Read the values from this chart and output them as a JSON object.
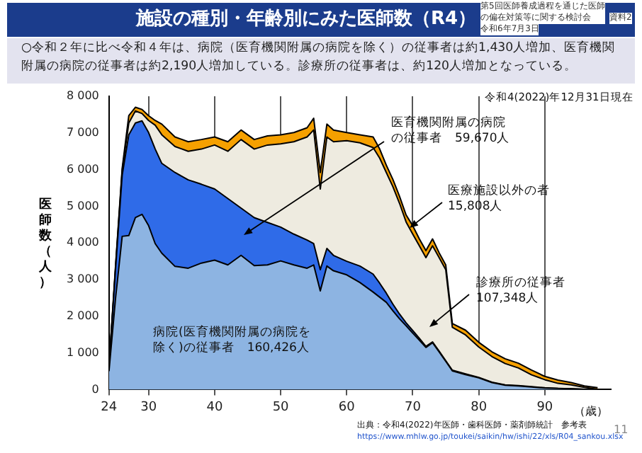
{
  "chart_data": {
    "type": "area",
    "stacked": true,
    "title": "施設の種別・年齢別にみた医師数（R4）",
    "subtitle": "○令和２年に比べ令和４年は、病院（医育機関附属の病院を除く）の従事者は約1,430人増加、医育機関附属の病院の従事者は約2,190人増加している。診療所の従事者は、約120人増加となっている。",
    "ylabel": "医師数（人）",
    "xlabel": "（歳）",
    "x": [
      24,
      25,
      26,
      27,
      28,
      29,
      30,
      31,
      32,
      34,
      36,
      38,
      40,
      42,
      44,
      46,
      48,
      50,
      52,
      54,
      55,
      56,
      57,
      58,
      60,
      62,
      64,
      65,
      66,
      67,
      68,
      69,
      70,
      71,
      72,
      73,
      74,
      75,
      76,
      78,
      80,
      82,
      84,
      86,
      88,
      90,
      92,
      94,
      96,
      98
    ],
    "series": [
      {
        "color": "#8db4e2",
        "values": [
          500,
          2500,
          4180,
          4200,
          4690,
          4780,
          4470,
          3980,
          3720,
          3360,
          3310,
          3450,
          3530,
          3400,
          3660,
          3380,
          3400,
          3510,
          3400,
          3310,
          3400,
          2690,
          3370,
          3240,
          3130,
          2920,
          2660,
          2520,
          2380,
          2150,
          1930,
          1740,
          1540,
          1350,
          1150,
          1280,
          1030,
          770,
          510,
          410,
          320,
          190,
          120,
          100,
          70,
          40,
          30,
          20,
          10,
          0
        ]
      },
      {
        "color": "#2f6be8",
        "values": [
          100,
          800,
          1670,
          2750,
          2580,
          2550,
          2540,
          2580,
          2450,
          2560,
          2410,
          2150,
          1940,
          1810,
          1290,
          1310,
          1160,
          920,
          840,
          770,
          580,
          580,
          480,
          420,
          370,
          450,
          490,
          380,
          250,
          180,
          130,
          80,
          70,
          50,
          30,
          20,
          20,
          20,
          20,
          20,
          10,
          10,
          10,
          10,
          10,
          10,
          0,
          0,
          0,
          0
        ]
      },
      {
        "color": "#eeebe0",
        "values": [
          20,
          50,
          130,
          320,
          330,
          200,
          330,
          650,
          780,
          710,
          780,
          960,
          1200,
          1290,
          1870,
          1870,
          2110,
          2270,
          2520,
          2810,
          3100,
          2200,
          3040,
          3100,
          3290,
          3360,
          3450,
          3410,
          3290,
          3200,
          3020,
          2750,
          2630,
          2520,
          2420,
          2620,
          2550,
          2480,
          1170,
          1060,
          830,
          700,
          580,
          480,
          320,
          220,
          140,
          110,
          50,
          10
        ]
      },
      {
        "color": "#f5a000",
        "values": [
          10,
          50,
          60,
          200,
          100,
          110,
          130,
          130,
          290,
          260,
          260,
          260,
          220,
          260,
          260,
          260,
          250,
          250,
          250,
          250,
          320,
          450,
          350,
          320,
          220,
          220,
          290,
          250,
          200,
          200,
          190,
          190,
          230,
          190,
          190,
          190,
          130,
          130,
          100,
          130,
          130,
          130,
          130,
          130,
          130,
          90,
          90,
          60,
          40,
          40
        ]
      }
    ],
    "xlim": [
      24,
      100
    ],
    "xticks": [
      24,
      30,
      40,
      50,
      60,
      70,
      80,
      90
    ],
    "ylim": [
      0,
      8000
    ],
    "yticks": [
      0,
      {
        "value": 1000,
        "label": "1 000"
      },
      {
        "value": 2000,
        "label": "2 000"
      },
      {
        "value": 3000,
        "label": "3 000"
      },
      {
        "value": 4000,
        "label": "4 000"
      },
      {
        "value": 5000,
        "label": "5 000"
      },
      {
        "value": 6000,
        "label": "6 000"
      },
      {
        "value": 7000,
        "label": "7 000"
      },
      {
        "value": 8000,
        "label": "8 000"
      }
    ],
    "grid": "x",
    "annotations": [
      "令和4(2022)年12月31日現在",
      "医育機関附属の病院の従事者　59,670人",
      "医療施設以外の者15,808人",
      "診療所の従事者107,348人",
      "病院(医育機関附属の病院を除く)の従事者　160,426人",
      "出典：令和4(2022)年医師・歯科医師・薬剤師統計　参考表",
      "https://www.mhlw.go.jp/toukei/saikin/hw/ishi/22/xls/R04_sankou.xlsx",
      "11",
      "第5回医師養成過程を通じた医師の偏在対策等に関する検討会",
      "令和6年7月3日",
      "資料2"
    ]
  }
}
